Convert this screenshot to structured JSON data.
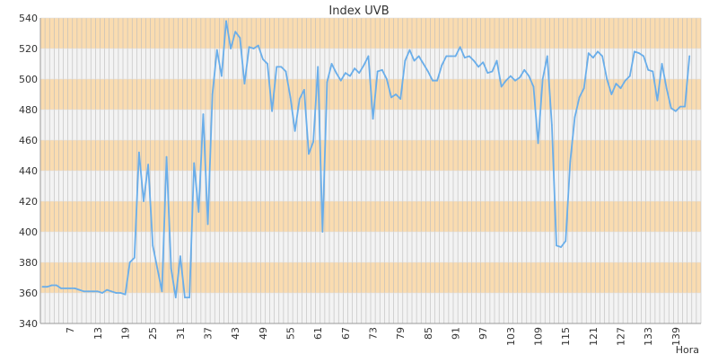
{
  "chart_data": {
    "type": "line",
    "title": "Index UVB",
    "xlabel": "Hora",
    "ylabel": "",
    "ylim": [
      340,
      540
    ],
    "yticks": [
      340,
      360,
      380,
      400,
      420,
      440,
      460,
      480,
      500,
      520,
      540
    ],
    "xlim": [
      1,
      144
    ],
    "xticks": [
      7,
      13,
      19,
      25,
      31,
      37,
      43,
      49,
      55,
      61,
      67,
      73,
      79,
      85,
      91,
      97,
      103,
      109,
      115,
      121,
      127,
      133,
      139
    ],
    "grid": true,
    "band_color": "#fadcb0",
    "band_alt_color": "#f3f3f3",
    "grid_color": "#bcbcbc",
    "line_color": "#6aaeea",
    "series": [
      {
        "values": [
          364,
          364,
          365,
          365,
          363,
          363,
          363,
          363,
          362,
          361,
          361,
          361,
          361,
          360,
          362,
          361,
          360,
          360,
          359,
          380,
          383,
          452,
          420,
          444,
          391,
          376,
          361,
          449,
          376,
          357,
          384,
          357,
          357,
          445,
          413,
          477,
          405,
          490,
          519,
          502,
          538,
          520,
          531,
          527,
          497,
          521,
          520,
          522,
          513,
          510,
          479,
          508,
          508,
          505,
          488,
          466,
          487,
          493,
          451,
          459,
          508,
          400,
          498,
          510,
          504,
          499,
          504,
          502,
          507,
          504,
          509,
          515,
          474,
          505,
          506,
          500,
          488,
          490,
          487,
          512,
          519,
          512,
          515,
          510,
          505,
          499,
          499,
          509,
          515,
          515,
          515,
          521,
          514,
          515,
          512,
          508,
          511,
          504,
          505,
          512,
          495,
          499,
          502,
          499,
          501,
          506,
          502,
          495,
          458,
          500,
          515,
          470,
          391,
          390,
          394,
          446,
          475,
          488,
          494,
          517,
          514,
          518,
          515,
          500,
          490,
          497,
          494,
          499,
          502,
          518,
          517,
          515,
          506,
          505,
          486,
          510,
          494,
          481,
          479,
          482,
          482,
          515
        ]
      }
    ]
  }
}
